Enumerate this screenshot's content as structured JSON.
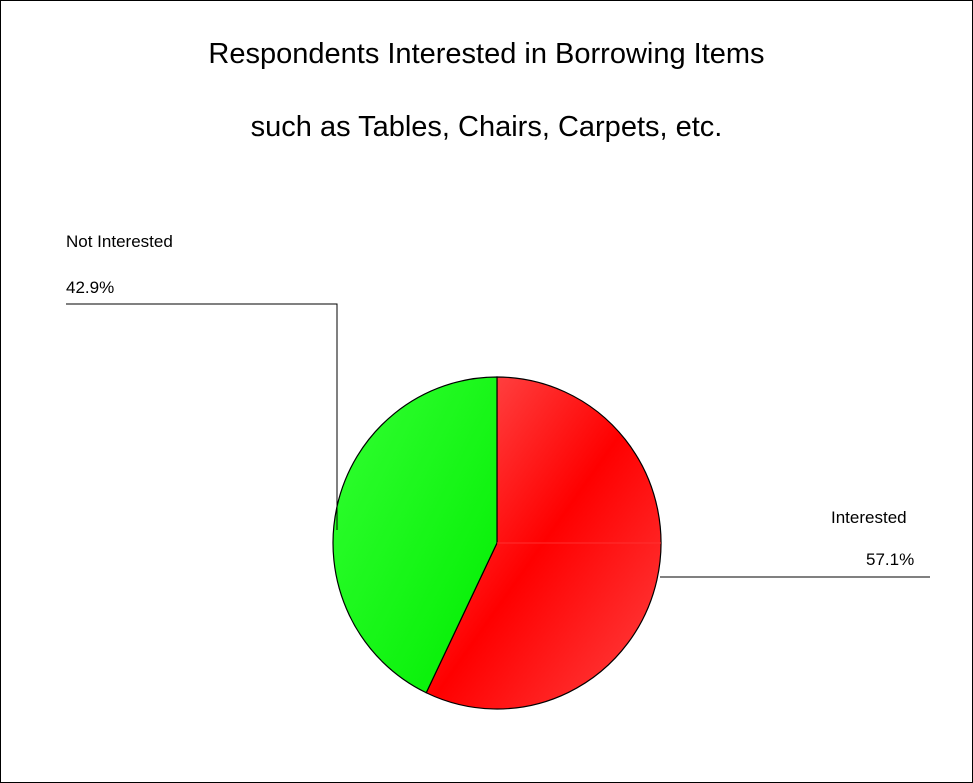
{
  "chart_data": {
    "type": "pie",
    "title": "Respondents Interested in Borrowing Items",
    "subtitle": "such as Tables, Chairs, Carpets, etc.",
    "slices": [
      {
        "label": "Interested",
        "value": 57.1,
        "value_label": "57.1%",
        "color": "#ff0000"
      },
      {
        "label": "Not Interested",
        "value": 42.9,
        "value_label": "42.9%",
        "color": "#00ff00"
      }
    ],
    "legend": "none",
    "data_labels": "outside-with-leader-lines"
  }
}
